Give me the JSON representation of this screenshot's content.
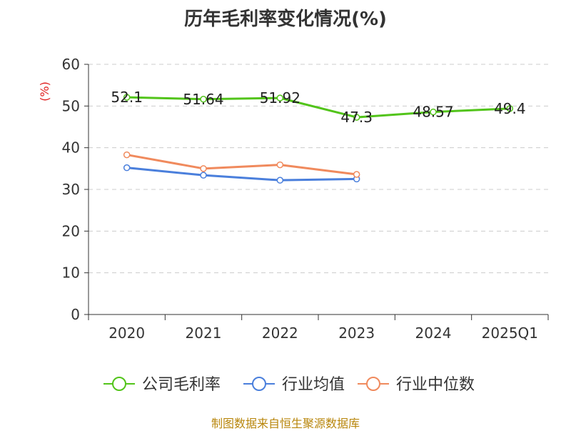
{
  "chart_data": {
    "type": "line",
    "title": "历年毛利率变化情况(%)",
    "ylabel": "(%)",
    "xlabel": "",
    "categories": [
      "2020",
      "2021",
      "2022",
      "2023",
      "2024",
      "2025Q1"
    ],
    "ylim": [
      0,
      60
    ],
    "yticks": [
      0,
      10,
      20,
      30,
      40,
      50,
      60
    ],
    "grid": true,
    "legend_position": "bottom",
    "series": [
      {
        "name": "公司毛利率",
        "color": "#52c41a",
        "values": [
          52.1,
          51.64,
          51.92,
          47.3,
          48.57,
          49.4
        ],
        "labels": [
          "52.1",
          "51.64",
          "51.92",
          "47.3",
          "48.57",
          "49.4"
        ]
      },
      {
        "name": "行业均值",
        "color": "#4a7fdc",
        "values": [
          35.2,
          33.4,
          32.2,
          32.5,
          null,
          null
        ]
      },
      {
        "name": "行业中位数",
        "color": "#f08a5d",
        "values": [
          38.3,
          35.0,
          35.9,
          33.6,
          null,
          null
        ]
      }
    ]
  },
  "source": "制图数据来自恒生聚源数据库"
}
